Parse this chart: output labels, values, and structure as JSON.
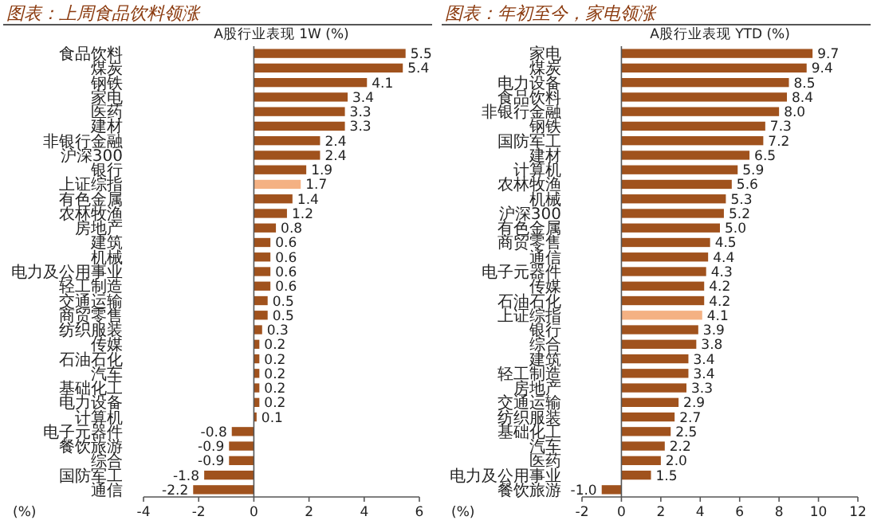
{
  "chart_data": [
    {
      "type": "bar",
      "orientation": "horizontal",
      "title": "图表：上周食品饮料领涨",
      "subtitle": "A股行业表现 1W (%)",
      "xlabel": "(%)",
      "categories": [
        "食品饮料",
        "煤炭",
        "钢铁",
        "家电",
        "医药",
        "建材",
        "非银行金融",
        "沪深300",
        "银行",
        "上证综指",
        "有色金属",
        "农林牧渔",
        "房地产",
        "建筑",
        "机械",
        "电力及公用事业",
        "轻工制造",
        "交通运输",
        "商贸零售",
        "纺织服装",
        "传媒",
        "石油石化",
        "汽车",
        "基础化工",
        "电力设备",
        "计算机",
        "电子元器件",
        "餐饮旅游",
        "综合",
        "国防军工",
        "通信"
      ],
      "values": [
        5.5,
        5.4,
        4.1,
        3.4,
        3.3,
        3.3,
        2.4,
        2.4,
        1.9,
        1.7,
        1.4,
        1.2,
        0.8,
        0.6,
        0.6,
        0.6,
        0.6,
        0.5,
        0.5,
        0.3,
        0.2,
        0.2,
        0.2,
        0.2,
        0.2,
        0.1,
        -0.8,
        -0.9,
        -0.9,
        -1.8,
        -2.2
      ],
      "value_labels": [
        "5.5",
        "5.4",
        "4.1",
        "3.4",
        "3.3",
        "3.3",
        "2.4",
        "2.4",
        "1.9",
        "1.7",
        "1.4",
        "1.2",
        "0.8",
        "0.6",
        "0.6",
        "0.6",
        "0.6",
        "0.5",
        "0.5",
        "0.3",
        "0.2",
        "0.2",
        "0.2",
        "0.2",
        "0.2",
        "0.1",
        "-0.8",
        "-0.9",
        "-0.9",
        "-1.8",
        "-2.2"
      ],
      "colors": [
        "#a0521d",
        "#a0521d",
        "#a0521d",
        "#a0521d",
        "#a0521d",
        "#a0521d",
        "#a0521d",
        "#a0521d",
        "#a0521d",
        "#f4b183",
        "#a0521d",
        "#a0521d",
        "#a0521d",
        "#a0521d",
        "#a0521d",
        "#a0521d",
        "#a0521d",
        "#a0521d",
        "#a0521d",
        "#a0521d",
        "#a0521d",
        "#a0521d",
        "#a0521d",
        "#a0521d",
        "#a0521d",
        "#a0521d",
        "#a0521d",
        "#a0521d",
        "#a0521d",
        "#a0521d",
        "#a0521d"
      ],
      "xlim": [
        -4,
        6
      ],
      "xticks": [
        -4,
        -2,
        0,
        2,
        4,
        6
      ]
    },
    {
      "type": "bar",
      "orientation": "horizontal",
      "title": "图表：年初至今，家电领涨",
      "subtitle": "A股行业表现 YTD (%)",
      "xlabel": "(%)",
      "categories": [
        "家电",
        "煤炭",
        "电力设备",
        "食品饮料",
        "非银行金融",
        "钢铁",
        "国防军工",
        "建材",
        "计算机",
        "农林牧渔",
        "机械",
        "沪深300",
        "有色金属",
        "商贸零售",
        "通信",
        "电子元器件",
        "传媒",
        "石油石化",
        "上证综指",
        "银行",
        "综合",
        "建筑",
        "轻工制造",
        "房地产",
        "交通运输",
        "纺织服装",
        "基础化工",
        "汽车",
        "医药",
        "电力及公用事业",
        "餐饮旅游"
      ],
      "values": [
        9.7,
        9.4,
        8.5,
        8.4,
        8.0,
        7.3,
        7.2,
        6.5,
        5.9,
        5.6,
        5.3,
        5.2,
        5.0,
        4.5,
        4.4,
        4.3,
        4.2,
        4.2,
        4.1,
        3.9,
        3.8,
        3.4,
        3.4,
        3.3,
        2.9,
        2.7,
        2.5,
        2.2,
        2.0,
        1.5,
        -1.0
      ],
      "value_labels": [
        "9.7",
        "9.4",
        "8.5",
        "8.4",
        "8.0",
        "7.3",
        "7.2",
        "6.5",
        "5.9",
        "5.6",
        "5.3",
        "5.2",
        "5.0",
        "4.5",
        "4.4",
        "4.3",
        "4.2",
        "4.2",
        "4.1",
        "3.9",
        "3.8",
        "3.4",
        "3.4",
        "3.3",
        "2.9",
        "2.7",
        "2.5",
        "2.2",
        "2.0",
        "1.5",
        "-1.0"
      ],
      "colors": [
        "#a0521d",
        "#a0521d",
        "#a0521d",
        "#a0521d",
        "#a0521d",
        "#a0521d",
        "#a0521d",
        "#a0521d",
        "#a0521d",
        "#a0521d",
        "#a0521d",
        "#a0521d",
        "#a0521d",
        "#a0521d",
        "#a0521d",
        "#a0521d",
        "#a0521d",
        "#a0521d",
        "#f4b183",
        "#a0521d",
        "#a0521d",
        "#a0521d",
        "#a0521d",
        "#a0521d",
        "#a0521d",
        "#a0521d",
        "#a0521d",
        "#a0521d",
        "#a0521d",
        "#a0521d",
        "#a0521d"
      ],
      "xlim": [
        -2,
        12
      ],
      "xticks": [
        -2,
        0,
        2,
        4,
        6,
        8,
        10,
        12
      ]
    }
  ]
}
